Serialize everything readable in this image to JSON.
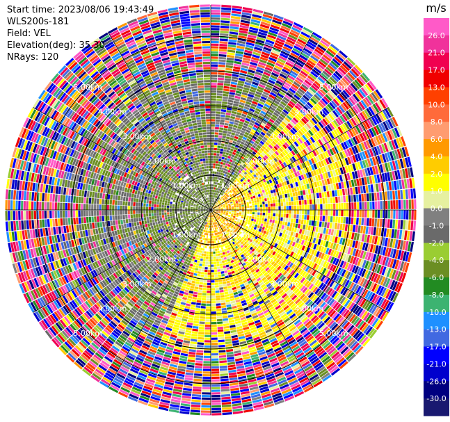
{
  "info": {
    "start_time": "Start time: 2023/08/06 19:43:49",
    "instrument": "WLS200s-181",
    "field": "Field: VEL",
    "elevation": "Elevation(deg): 35.30",
    "nrays": "NRays: 120"
  },
  "chart_data": {
    "type": "heatmap",
    "projection": "polar-ppi",
    "field": "VEL",
    "units": "m/s",
    "n_rays": 120,
    "elevation_deg": 35.3,
    "range_rings_km": [
      1.0,
      2.0,
      3.0,
      4.0,
      5.0
    ],
    "ring_labels": [
      "1.00km",
      "2.00km",
      "3.00km",
      "4.00km",
      "5.00km"
    ],
    "max_range_km": 5.9,
    "azimuth_lines": true,
    "colorbar": {
      "title": "m/s",
      "ticks": [
        "26.0",
        "21.0",
        "17.0",
        "13.0",
        "10.0",
        "8.0",
        "6.0",
        "4.0",
        "2.0",
        "1.0",
        "0.0",
        "-1.0",
        "-2.0",
        "-4.0",
        "-6.0",
        "-8.0",
        "-10.0",
        "-13.0",
        "-17.0",
        "-21.0",
        "-26.0",
        "-30.0"
      ],
      "bin_edges": [
        30,
        26,
        21,
        17,
        13,
        10,
        8,
        6,
        4,
        2,
        1,
        0,
        -1,
        -2,
        -4,
        -6,
        -8,
        -10,
        -13,
        -17,
        -21,
        -26,
        -30
      ],
      "colors": [
        "#ff5ac8",
        "#f0329b",
        "#f00050",
        "#f00000",
        "#ff4000",
        "#ff6a3a",
        "#ff9c70",
        "#ff9900",
        "#ffcc00",
        "#ffff00",
        "#e6f0a0",
        "#808080",
        "#6a6a6a",
        "#9acd32",
        "#6b8e23",
        "#228b22",
        "#3cb371",
        "#1e90ff",
        "#4169e1",
        "#0000ff",
        "#0000cd",
        "#000080",
        "#191970"
      ]
    },
    "velocity_pattern": {
      "positive_sector_azimuth_deg": [
        40,
        200
      ],
      "negative_sector_azimuth_deg": [
        200,
        360
      ],
      "typical_inner_positive": 2.0,
      "typical_inner_negative": -4.0,
      "clean_range_km": 3.7
    }
  }
}
